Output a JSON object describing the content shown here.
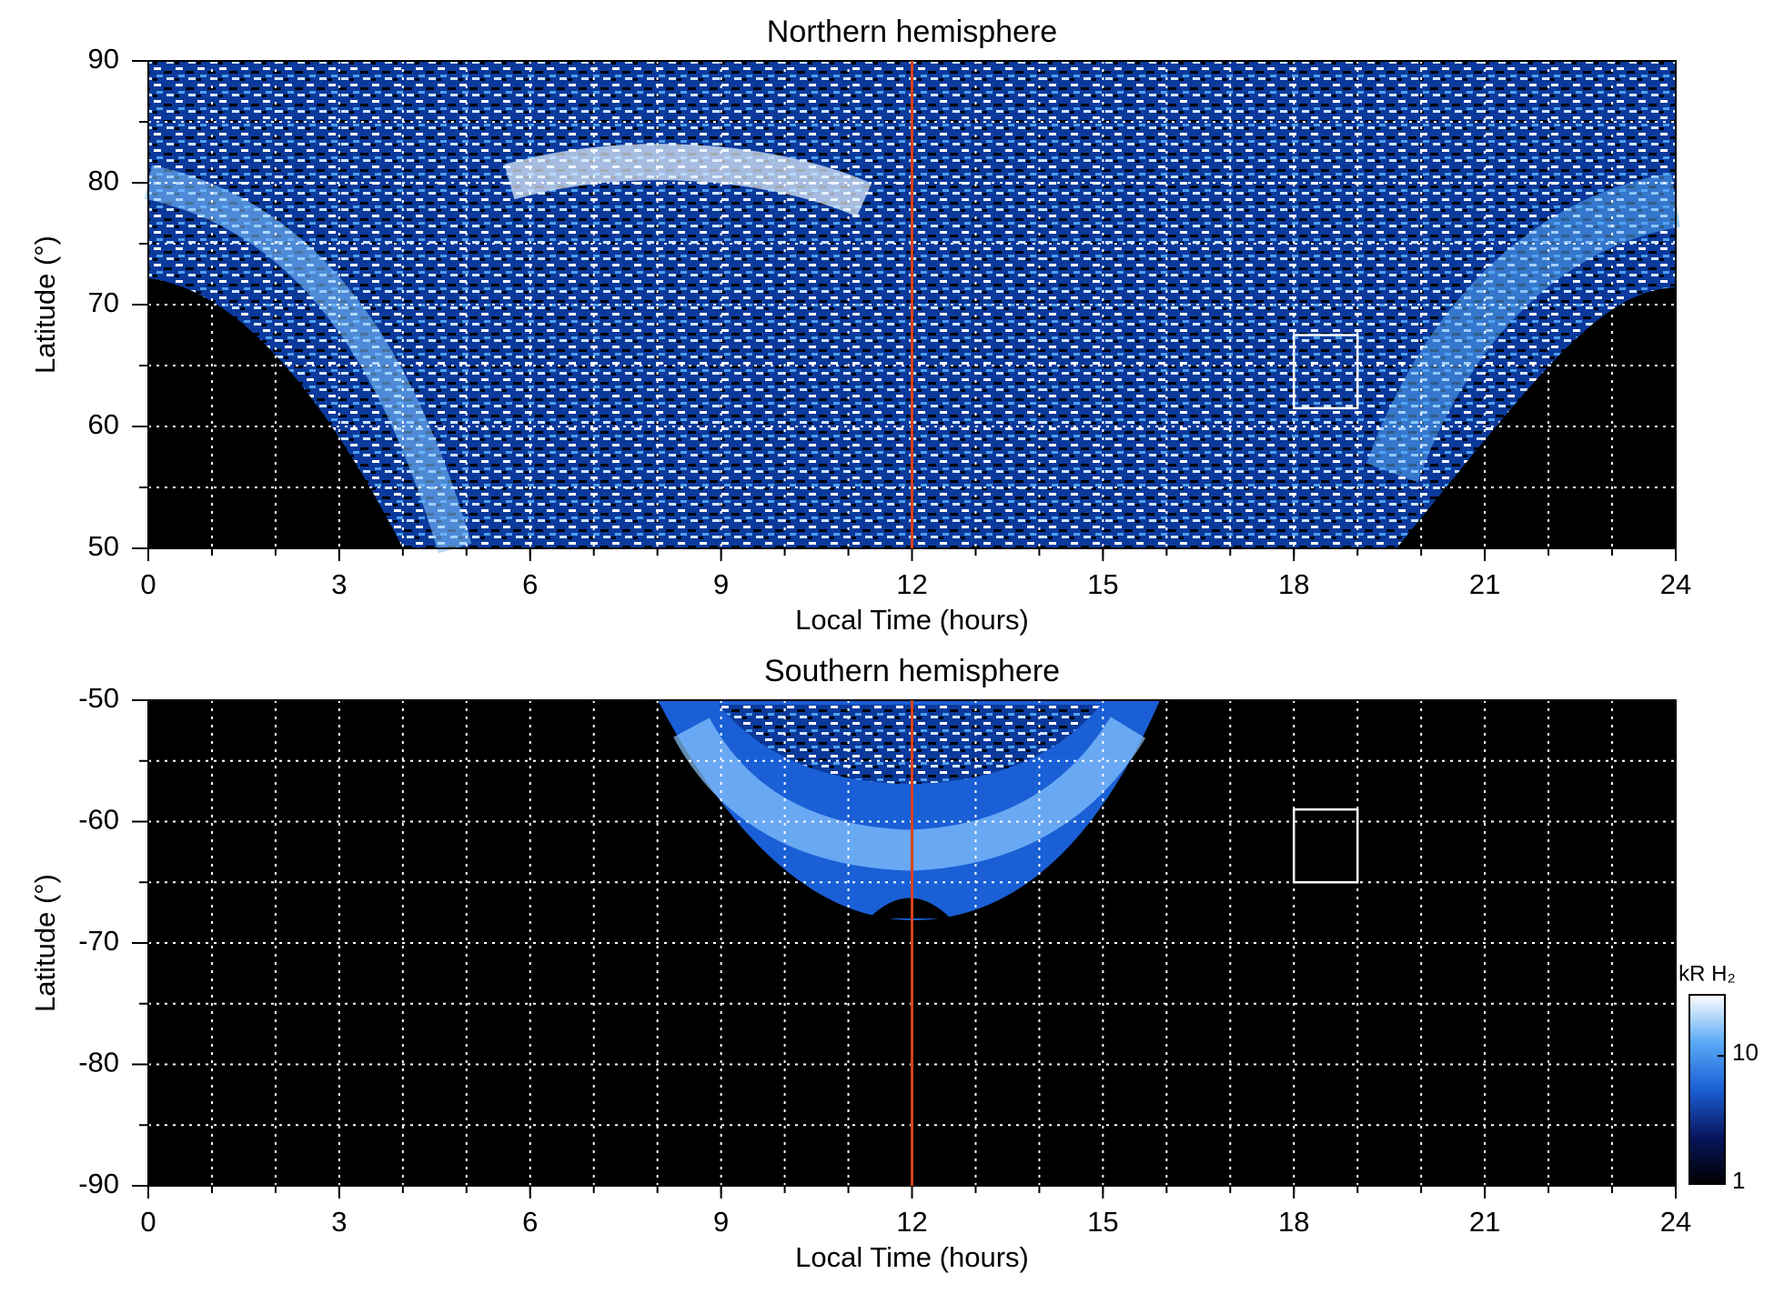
{
  "chart_data": [
    {
      "type": "heatmap",
      "title": "Northern hemisphere",
      "xlabel": "Local Time (hours)",
      "ylabel": "Latitude (°)",
      "xlim": [
        0,
        24
      ],
      "xticks": [
        0,
        3,
        6,
        9,
        12,
        15,
        18,
        21,
        24
      ],
      "xgrid": [
        1,
        2,
        3,
        4,
        5,
        6,
        7,
        8,
        9,
        10,
        11,
        12,
        13,
        14,
        15,
        16,
        17,
        18,
        19,
        20,
        21,
        22,
        23
      ],
      "ylim": [
        50,
        90
      ],
      "yticks": [
        50,
        60,
        70,
        80,
        90
      ],
      "ygrid": [
        55,
        60,
        65,
        70,
        75,
        80,
        85
      ],
      "grid": true,
      "vline": {
        "x": 12,
        "color": "#d8431c"
      },
      "box": {
        "x": [
          18,
          19
        ],
        "y": [
          61.5,
          67.5
        ],
        "color": "#ffffff"
      }
    },
    {
      "type": "heatmap",
      "title": "Southern hemisphere",
      "xlabel": "Local Time (hours)",
      "ylabel": "Latitude (°)",
      "xlim": [
        0,
        24
      ],
      "xticks": [
        0,
        3,
        6,
        9,
        12,
        15,
        18,
        21,
        24
      ],
      "xgrid": [
        1,
        2,
        3,
        4,
        5,
        6,
        7,
        8,
        9,
        10,
        11,
        12,
        13,
        14,
        15,
        16,
        17,
        18,
        19,
        20,
        21,
        22,
        23
      ],
      "ylim": [
        -90,
        -50
      ],
      "yticks": [
        -90,
        -80,
        -70,
        -60,
        -50
      ],
      "ygrid": [
        -85,
        -80,
        -75,
        -70,
        -65,
        -60,
        -55
      ],
      "grid": true,
      "vline": {
        "x": 12,
        "color": "#d8431c"
      },
      "box": {
        "x": [
          18,
          19
        ],
        "y": [
          -59,
          -65
        ],
        "color": "#ffffff"
      },
      "colorbar": {
        "label": "kR H₂",
        "lim": [
          1,
          30
        ],
        "ticks": [
          1,
          10
        ],
        "scale": "log",
        "colormap": [
          "#000000",
          "#08165e",
          "#1a5fd6",
          "#5aaaf5",
          "#ffffff"
        ]
      }
    }
  ]
}
